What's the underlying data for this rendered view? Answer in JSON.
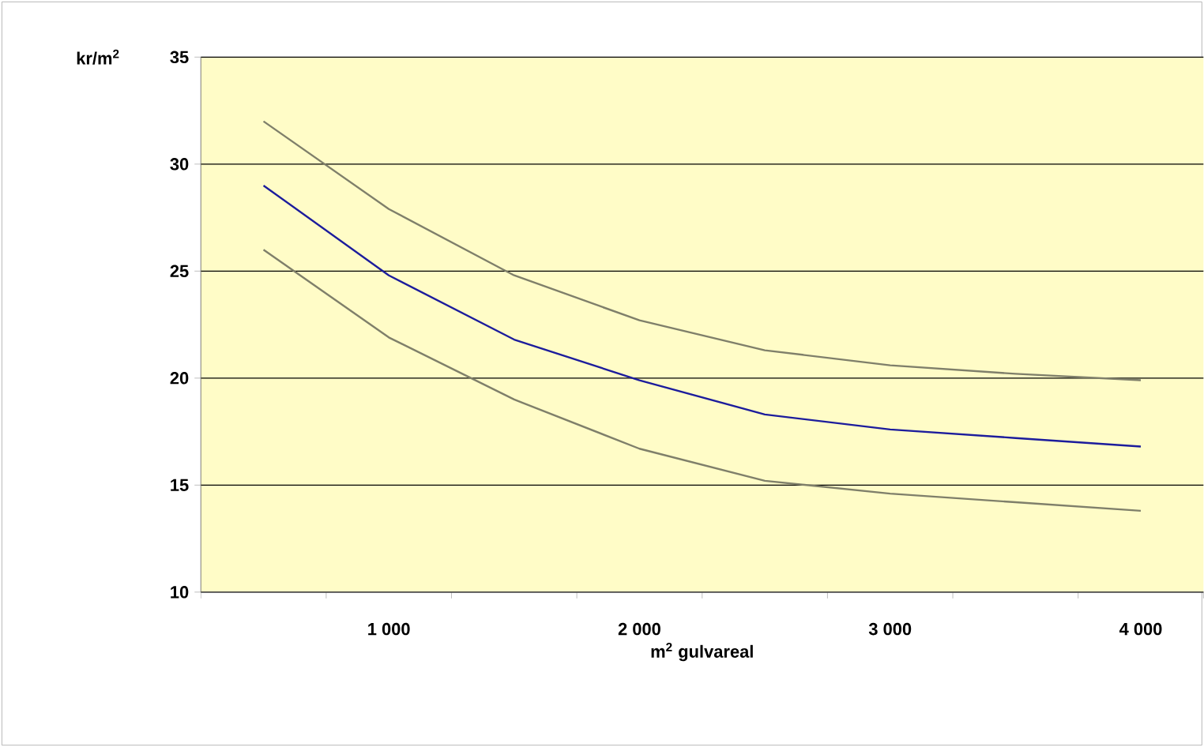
{
  "chart_data": {
    "type": "line",
    "ylabel": "kr/m$^{2}$",
    "xlabel": "m$^{2}$ gulvareal",
    "categories": [
      null,
      "1 000",
      null,
      "2 000",
      null,
      "3 000",
      null,
      "4 000"
    ],
    "series": [
      {
        "color": "#7f7f6a",
        "values": [
          32.0,
          27.9,
          24.8,
          22.7,
          21.3,
          20.6,
          20.2,
          19.9
        ]
      },
      {
        "color": "#1c1c9c",
        "values": [
          29.0,
          24.8,
          21.8,
          19.9,
          18.3,
          17.6,
          17.2,
          16.8
        ]
      },
      {
        "color": "#7f7f6a",
        "values": [
          26.0,
          21.9,
          19.0,
          16.7,
          15.2,
          14.6,
          14.2,
          13.8
        ]
      }
    ],
    "ylim": [
      10,
      35
    ],
    "yticks": [
      10,
      15,
      20,
      25,
      30,
      35
    ],
    "grid": "y",
    "marker": "none",
    "line_style": "solid"
  }
}
